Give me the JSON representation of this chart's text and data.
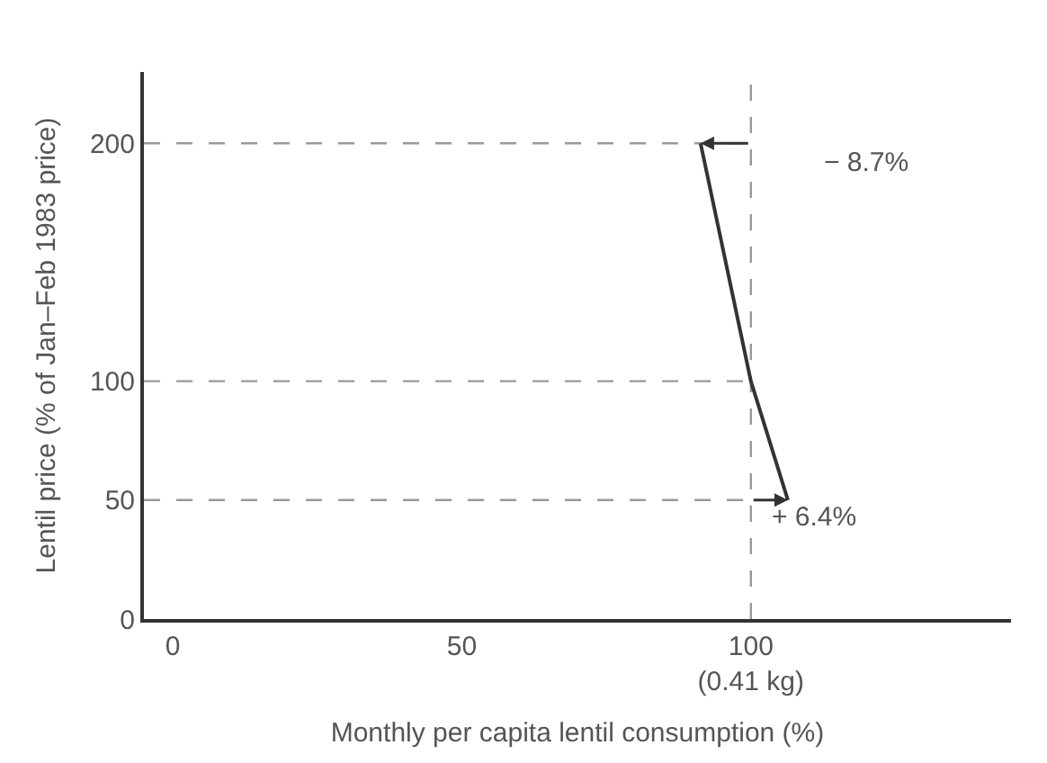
{
  "chart_data": {
    "type": "line",
    "xlabel": "Monthly per capita lentil consumption (%)",
    "ylabel": "Lentil price (% of Jan–Feb 1983 price)",
    "x": [
      91.3,
      100,
      106.4
    ],
    "series": [
      {
        "color": "#333333",
        "values": [
          200,
          100,
          50
        ]
      }
    ],
    "xlim": [
      -5,
      145
    ],
    "ylim": [
      0,
      230
    ],
    "xticks": [
      0,
      50,
      {
        "value": 100,
        "label": "100\n(0.41 kg)"
      }
    ],
    "yticks": [
      0,
      50,
      100,
      200
    ],
    "marker": "none",
    "line_style": "solid",
    "grid": false,
    "ref_lines": [
      {
        "axis": "y",
        "value": 200,
        "line_style": "dashed",
        "color": "#999999"
      },
      {
        "axis": "y",
        "value": 100,
        "line_style": "dashed",
        "color": "#999999"
      },
      {
        "axis": "y",
        "value": 50,
        "line_style": "dashed",
        "color": "#999999"
      },
      {
        "axis": "x",
        "value": 100,
        "line_style": "dashed",
        "color": "#999999"
      }
    ],
    "annotations": [
      "− 8.7%",
      "+ 6.4%"
    ]
  }
}
